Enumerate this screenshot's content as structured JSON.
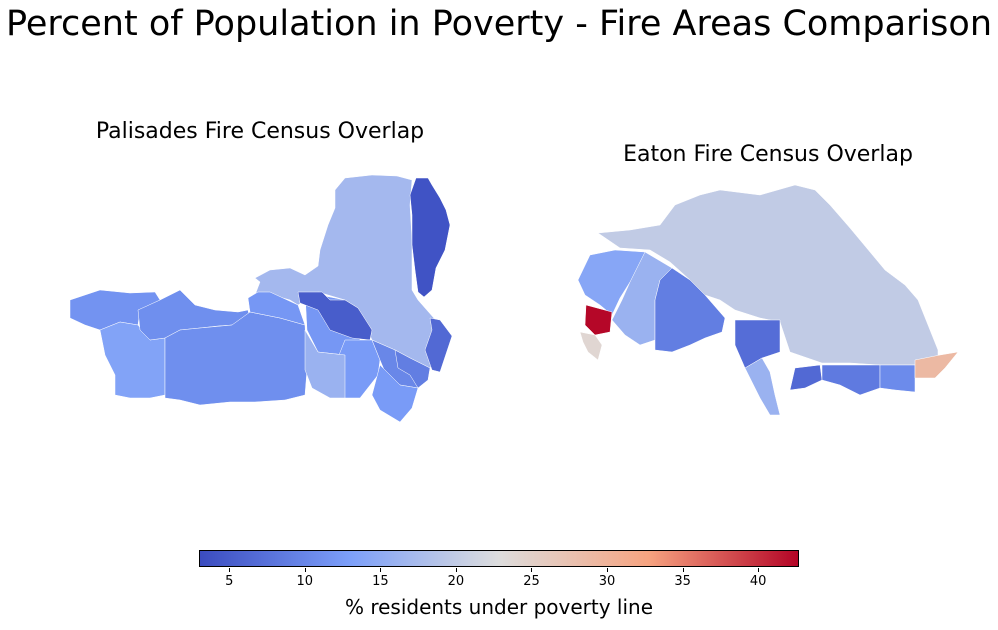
{
  "title": "Percent of Population in Poverty - Fire Areas Comparison",
  "maps": [
    {
      "title": "Palisades Fire Census Overlap",
      "tracts": [
        {
          "id": "p1",
          "poverty_pct": 3.8
        },
        {
          "id": "p2",
          "poverty_pct": 17.0
        },
        {
          "id": "p3",
          "poverty_pct": 11.5
        },
        {
          "id": "p4",
          "poverty_pct": 13.5
        },
        {
          "id": "p5",
          "poverty_pct": 16.0
        },
        {
          "id": "p6",
          "poverty_pct": 11.0
        },
        {
          "id": "p7",
          "poverty_pct": 12.5
        },
        {
          "id": "p8",
          "poverty_pct": 6.5
        },
        {
          "id": "p9",
          "poverty_pct": 17.5
        },
        {
          "id": "p10",
          "poverty_pct": 12.0
        },
        {
          "id": "p11",
          "poverty_pct": 9.0
        },
        {
          "id": "p12",
          "poverty_pct": 10.0
        },
        {
          "id": "p13",
          "poverty_pct": 5.0
        },
        {
          "id": "p14",
          "poverty_pct": 12.5
        },
        {
          "id": "p15",
          "poverty_pct": 11.0
        }
      ]
    },
    {
      "title": "Eaton Fire Census Overlap",
      "tracts": [
        {
          "id": "e1",
          "poverty_pct": 20.0
        },
        {
          "id": "e2",
          "poverty_pct": 14.0
        },
        {
          "id": "e3",
          "poverty_pct": 16.0
        },
        {
          "id": "e4",
          "poverty_pct": 9.0
        },
        {
          "id": "e5",
          "poverty_pct": 42.5
        },
        {
          "id": "e6",
          "poverty_pct": 24.0
        },
        {
          "id": "e7",
          "poverty_pct": 7.0
        },
        {
          "id": "e8",
          "poverty_pct": 6.5
        },
        {
          "id": "e9",
          "poverty_pct": 8.5
        },
        {
          "id": "e10",
          "poverty_pct": 10.5
        },
        {
          "id": "e11",
          "poverty_pct": 29.0
        }
      ]
    }
  ],
  "colorbar": {
    "label": "% residents under poverty line",
    "min": 3,
    "max": 42.7,
    "ticks": [
      "5",
      "10",
      "15",
      "20",
      "25",
      "30",
      "35",
      "40"
    ],
    "colormap": "coolwarm"
  }
}
